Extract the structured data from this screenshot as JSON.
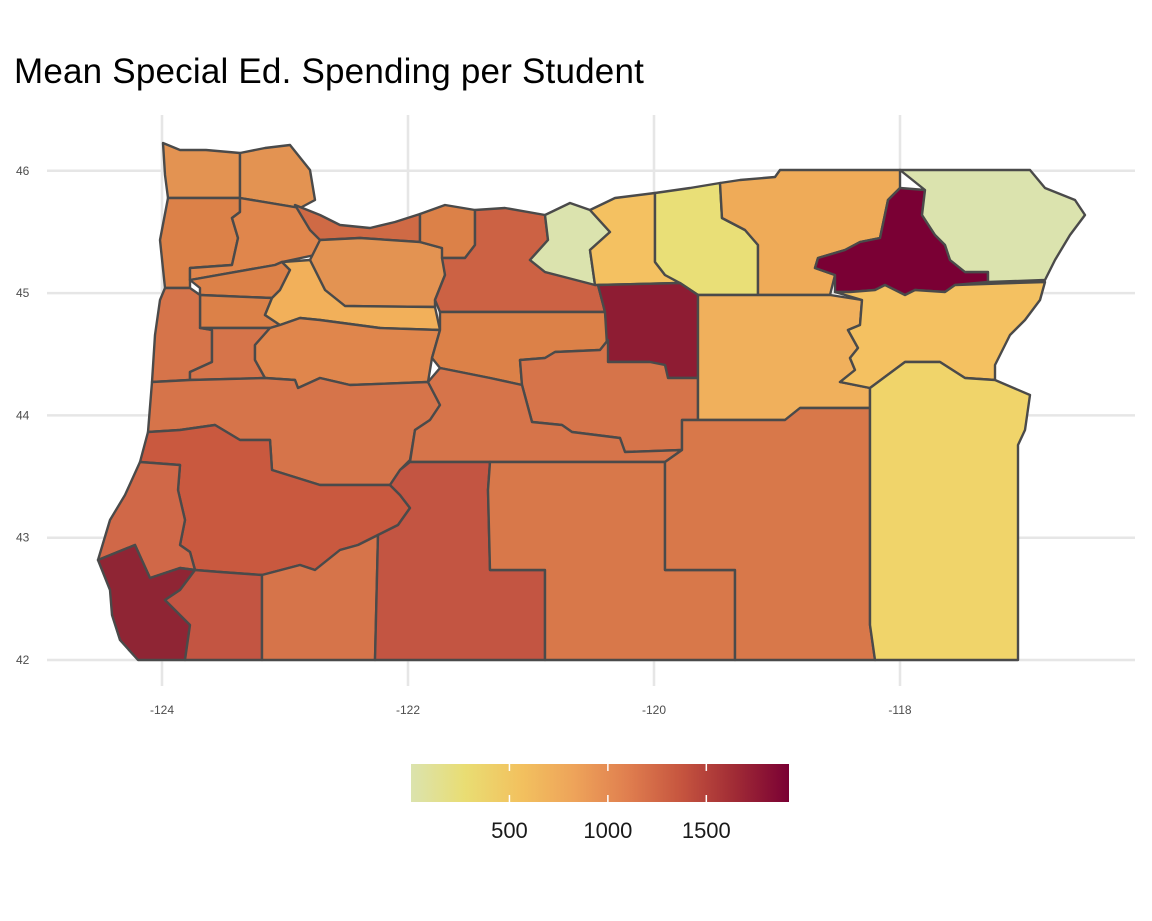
{
  "title": "Mean Special Ed. Spending per Student",
  "chart_data": {
    "type": "choropleth",
    "title": "Mean Special Ed. Spending per Student",
    "xlim": [
      -125,
      -116.5
    ],
    "ylim": [
      42,
      46.3
    ],
    "x_ticks": [
      -124,
      -122,
      -120,
      -118
    ],
    "y_ticks": [
      42,
      43,
      44,
      45,
      46
    ],
    "grid": true,
    "legend": {
      "position": "bottom",
      "type": "colorbar",
      "range": [
        0,
        1920
      ],
      "ticks": [
        500,
        1000,
        1500
      ],
      "colors": [
        "#dbe3ae",
        "#e9dd73",
        "#f2c25f",
        "#eea45a",
        "#e07f4f",
        "#c6553f",
        "#a02b35",
        "#7a0034"
      ]
    },
    "county_colors": {
      "clatsop": "#e39352",
      "columbia": "#e39352",
      "tillamook": "#dc8148",
      "washington": "#e0864c",
      "multnomah": "#cf6a45",
      "clackamas": "#e39352",
      "yamhill": "#dc8148",
      "polk": "#dc8148",
      "marion": "#f2b05a",
      "lincoln": "#d6744a",
      "benton": "#d6744a",
      "linn": "#e0864c",
      "lane": "#d6744a",
      "hood_river": "#dc8148",
      "wasco": "#cc6244",
      "sherman": "#dbe3ae",
      "gilliam": "#f4c161",
      "morrow": "#e9df77",
      "umatilla": "#efab58",
      "union": "#7a0034",
      "wallowa": "#dbe3ae",
      "jefferson": "#dc8148",
      "wheeler": "#8e1c33",
      "crook": "#d6744a",
      "grant": "#f0b05c",
      "baker": "#f4c161",
      "deschutes": "#d6744a",
      "douglas": "#c9593f",
      "coos": "#d06848",
      "curry": "#8f2534",
      "josephine": "#c35542",
      "jackson": "#d6744a",
      "klamath": "#c35542",
      "lake": "#d8784a",
      "harney": "#d8784a",
      "malheur": "#f0d46a"
    }
  }
}
